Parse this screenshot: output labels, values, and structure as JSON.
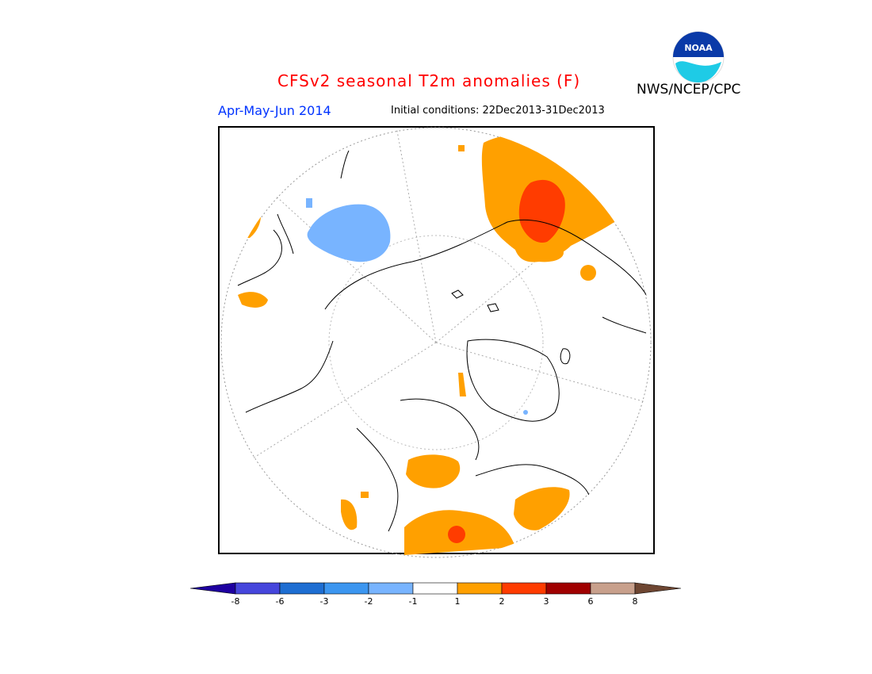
{
  "title": "CFSv2 seasonal T2m anomalies (F)",
  "season": "Apr-May-Jun 2014",
  "initial_conditions": "Initial conditions: 22Dec2013-31Dec2013",
  "agency": "NWS/NCEP/CPC",
  "logo_text": "NOAA",
  "colors": {
    "title": "#ff0000",
    "season": "#0033ff",
    "warm1": "#ffa000",
    "warm2": "#ff3c00",
    "cool1": "#78b4ff"
  },
  "colorbar": {
    "ticks": [
      "-8",
      "-6",
      "-3",
      "-2",
      "-1",
      "1",
      "2",
      "3",
      "6",
      "8"
    ],
    "colors": [
      "#1e00a0",
      "#4646dc",
      "#1e6ed2",
      "#3c96f0",
      "#78b4ff",
      "#ffffff",
      "#ffa000",
      "#ff3c00",
      "#a00000",
      "#c8a08c",
      "#6e4632"
    ]
  }
}
